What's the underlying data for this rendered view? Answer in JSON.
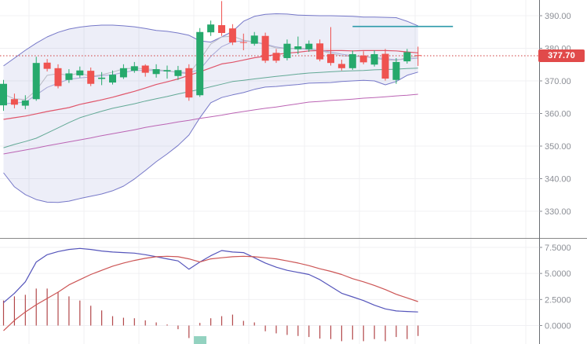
{
  "colors": {
    "up_candle": "#26a96c",
    "down_candle": "#ef5350",
    "bollinger_line": "#7678c8",
    "bollinger_fill": "rgba(118,120,200,0.13)",
    "ma_red": "#e0566b",
    "ma_teal": "#63a996",
    "ma_magenta": "#bb64b4",
    "ma_gray": "#b9bac4",
    "ma_lavender": "#a9a9d6",
    "dotted_price_line": "#cf3e3e",
    "price_tag_bg": "#e14a4a",
    "resistance_segment": "#2d9aaa",
    "macd_line": "#5555bb",
    "signal_line": "#cc5555",
    "histogram_bar": "#b2474a",
    "marker_box": "#93d2c0",
    "separator": "#888888",
    "axis_line": "#6a6d72",
    "grid": "#f0f0f3"
  },
  "price_panel": {
    "last_price": {
      "label": "377.70",
      "value": 377.7
    },
    "y_axis_ticks": [
      {
        "label": "390.00",
        "value": 390
      },
      {
        "label": "380.00",
        "value": 380
      },
      {
        "label": "370.00",
        "value": 370
      },
      {
        "label": "360.00",
        "value": 360
      },
      {
        "label": "350.00",
        "value": 350
      },
      {
        "label": "340.00",
        "value": 340
      },
      {
        "label": "330.00",
        "value": 330
      }
    ]
  },
  "indicator_panel": {
    "y_axis_ticks": [
      {
        "label": "7.5000",
        "value": 7.5
      },
      {
        "label": "5.0000",
        "value": 5.0
      },
      {
        "label": "2.5000",
        "value": 2.5
      },
      {
        "label": "0.0000",
        "value": 0.0
      }
    ]
  },
  "chart_data": {
    "type": "candlestick",
    "panels": [
      {
        "name": "price",
        "ylim": [
          328,
          394.5
        ],
        "grid": true,
        "dotted_level": 377.7,
        "resistance_segment": {
          "price": 386.7,
          "start_index": 32,
          "end_index": 41.2
        },
        "candles_ohlc": [
          [
            362.5,
            370.3,
            360.8,
            369.1
          ],
          [
            364.4,
            366.1,
            361.6,
            362.7
          ],
          [
            362.4,
            365.6,
            361.3,
            364.0
          ],
          [
            364.4,
            377.4,
            363.9,
            375.5
          ],
          [
            375.6,
            376.7,
            372.9,
            373.7
          ],
          [
            373.9,
            375.1,
            367.7,
            368.4
          ],
          [
            370.3,
            373.6,
            369.4,
            372.3
          ],
          [
            371.7,
            374.4,
            371.0,
            373.2
          ],
          [
            373.1,
            374.1,
            368.4,
            369.1
          ],
          [
            370.6,
            372.7,
            368.7,
            371.0
          ],
          [
            369.5,
            373.2,
            368.9,
            371.9
          ],
          [
            371.1,
            375.1,
            370.6,
            373.9
          ],
          [
            373.1,
            375.8,
            372.5,
            374.5
          ],
          [
            374.7,
            375.1,
            371.3,
            372.5
          ],
          [
            372.1,
            375.1,
            371.0,
            373.6
          ],
          [
            372.9,
            374.7,
            370.7,
            373.3
          ],
          [
            371.5,
            374.6,
            370.3,
            373.3
          ],
          [
            373.9,
            375.1,
            363.9,
            364.9
          ],
          [
            365.6,
            386.2,
            365.1,
            385.0
          ],
          [
            384.9,
            388.5,
            383.8,
            387.3
          ],
          [
            387.1,
            394.5,
            383.8,
            384.7
          ],
          [
            386.1,
            387.4,
            381.0,
            381.8
          ],
          [
            381.9,
            384.5,
            379.4,
            381.7
          ],
          [
            381.4,
            385.0,
            380.8,
            383.9
          ],
          [
            383.8,
            384.8,
            375.5,
            376.2
          ],
          [
            378.6,
            379.8,
            375.5,
            376.2
          ],
          [
            377.0,
            382.7,
            376.3,
            381.4
          ],
          [
            379.7,
            383.6,
            378.2,
            380.6
          ],
          [
            379.7,
            382.4,
            378.9,
            381.4
          ],
          [
            381.5,
            382.7,
            376.0,
            376.6
          ],
          [
            378.2,
            386.5,
            374.7,
            375.5
          ],
          [
            375.2,
            376.5,
            373.2,
            373.9
          ],
          [
            373.9,
            379.3,
            373.4,
            378.2
          ],
          [
            377.8,
            379.1,
            375.1,
            375.7
          ],
          [
            375.0,
            379.4,
            374.4,
            378.2
          ],
          [
            378.3,
            379.8,
            370.1,
            370.7
          ],
          [
            370.3,
            377.0,
            369.1,
            375.8
          ],
          [
            376.0,
            379.8,
            375.3,
            378.8
          ],
          [
            377.9,
            380.5,
            374.6,
            377.7
          ]
        ],
        "overlays": {
          "bollinger_upper": [
            374.6,
            377.0,
            379.4,
            381.6,
            383.5,
            384.9,
            385.9,
            386.5,
            386.9,
            387.1,
            387.1,
            386.9,
            386.6,
            386.1,
            385.5,
            385.2,
            384.7,
            384.0,
            382.3,
            381.9,
            383.5,
            385.2,
            388.3,
            389.8,
            390.4,
            390.6,
            390.5,
            390.2,
            390.1,
            390.0,
            390.0,
            389.9,
            389.8,
            389.6,
            389.6,
            389.5,
            389.4,
            388.3,
            386.9
          ],
          "bollinger_lower": [
            341.8,
            337.5,
            335.1,
            333.6,
            332.8,
            332.7,
            333.1,
            333.9,
            334.6,
            335.3,
            336.3,
            337.7,
            339.9,
            342.5,
            345.2,
            347.6,
            350.2,
            353.4,
            358.7,
            363.3,
            364.9,
            365.7,
            366.4,
            367.4,
            368.1,
            368.3,
            368.6,
            368.9,
            369.3,
            369.4,
            369.5,
            369.8,
            370.0,
            370.2,
            370.0,
            368.8,
            369.8,
            371.7,
            372.7
          ],
          "ma_red": [
            358.2,
            358.7,
            359.2,
            359.9,
            360.6,
            361.2,
            361.8,
            362.8,
            363.5,
            364.2,
            365.0,
            365.9,
            366.8,
            367.8,
            368.9,
            369.7,
            370.6,
            371.7,
            372.8,
            374.0,
            375.2,
            375.7,
            376.4,
            377.1,
            377.6,
            378.1,
            378.5,
            378.8,
            379.2,
            379.3,
            379.3,
            379.3,
            379.2,
            379.3,
            379.3,
            379.3,
            379.2,
            378.9,
            378.6
          ],
          "ma_teal": [
            349.5,
            350.5,
            351.4,
            352.4,
            354.0,
            355.6,
            357.2,
            358.7,
            359.7,
            360.7,
            361.6,
            362.3,
            363.0,
            363.8,
            364.5,
            365.2,
            366.0,
            366.7,
            367.4,
            368.2,
            369.0,
            369.8,
            370.2,
            370.6,
            371.0,
            371.4,
            371.7,
            372.1,
            372.4,
            372.6,
            372.8,
            373.0,
            373.1,
            373.2,
            373.4,
            373.5,
            373.6,
            373.8,
            373.9
          ],
          "ma_magenta": [
            347.6,
            348.2,
            348.8,
            349.4,
            350.1,
            350.7,
            351.3,
            351.9,
            352.5,
            353.2,
            353.8,
            354.4,
            355.0,
            355.7,
            356.3,
            356.8,
            357.4,
            357.9,
            358.5,
            359.0,
            359.5,
            360.1,
            360.6,
            361.1,
            361.6,
            362.0,
            362.5,
            363.0,
            363.5,
            363.7,
            364.0,
            364.2,
            364.4,
            364.7,
            364.9,
            365.1,
            365.4,
            365.6,
            365.9
          ],
          "ma_gray": [
            365.9,
            364.5,
            364.3,
            367.1,
            371.7,
            372.2,
            371.7,
            372.4,
            371.4,
            371.9,
            372.7,
            373.7,
            373.9,
            373.7,
            373.4,
            373.2,
            372.5,
            372.2,
            376.5,
            381.3,
            383.5,
            383.7,
            382.5,
            381.9,
            381.1,
            380.1,
            379.9,
            380.1,
            379.9,
            379.4,
            378.4,
            377.7,
            377.5,
            377.5,
            377.0,
            376.4,
            376.3,
            377.1,
            377.5
          ],
          "ma_lavender": [
            363.0,
            363.2,
            363.5,
            365.7,
            368.0,
            369.3,
            370.5,
            370.9,
            371.2,
            371.6,
            371.9,
            372.6,
            373.2,
            373.2,
            373.2,
            373.0,
            372.7,
            372.5,
            373.5,
            377.5,
            380.5,
            382.0,
            382.3,
            382.0,
            381.3,
            380.4,
            379.9,
            379.9,
            379.7,
            379.4,
            378.9,
            378.2,
            377.7,
            377.5,
            377.2,
            376.8,
            376.5,
            376.7,
            377.0
          ]
        }
      },
      {
        "name": "macd",
        "ylim": [
          -1.8,
          8.3
        ],
        "grid": true,
        "macd_line": [
          2.2,
          3.1,
          4.2,
          6.1,
          6.8,
          7.1,
          7.3,
          7.4,
          7.3,
          7.15,
          7.05,
          7.0,
          6.95,
          6.8,
          6.6,
          6.4,
          6.2,
          5.4,
          6.1,
          6.7,
          7.2,
          7.05,
          7.0,
          6.5,
          6.0,
          5.6,
          5.3,
          5.1,
          4.9,
          4.4,
          3.75,
          3.1,
          2.75,
          2.4,
          1.95,
          1.6,
          1.4,
          1.35,
          1.3
        ],
        "signal_line": [
          -0.5,
          0.5,
          1.3,
          2.0,
          2.6,
          3.2,
          3.9,
          4.4,
          4.9,
          5.3,
          5.7,
          6.0,
          6.25,
          6.45,
          6.6,
          6.65,
          6.6,
          6.4,
          6.1,
          6.4,
          6.5,
          6.6,
          6.65,
          6.6,
          6.5,
          6.4,
          6.2,
          6.0,
          5.75,
          5.45,
          5.2,
          4.9,
          4.5,
          4.2,
          3.85,
          3.45,
          3.0,
          2.65,
          2.3
        ],
        "histogram": [
          2.4,
          2.8,
          2.95,
          3.55,
          3.55,
          3.2,
          2.8,
          2.4,
          1.9,
          1.45,
          0.9,
          0.75,
          0.7,
          0.5,
          0.3,
          0.1,
          -0.35,
          -1.2,
          0.25,
          0.7,
          0.9,
          1.05,
          0.45,
          0.3,
          -0.55,
          -0.75,
          -0.9,
          -1.0,
          -1.1,
          -1.25,
          -1.3,
          -1.5,
          -1.35,
          -1.5,
          -1.3,
          -1.5,
          -1.1,
          -1.3,
          -1.0
        ],
        "marker_box": {
          "start_index": 17.45,
          "end_index": 18.6,
          "top_value": -1.02
        }
      }
    ]
  }
}
